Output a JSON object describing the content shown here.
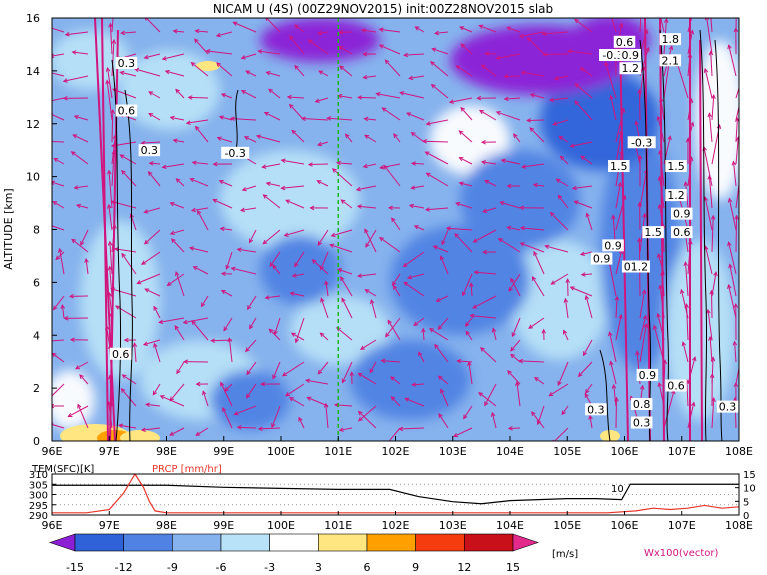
{
  "title": "NICAM U (4S) (00Z29NOV2015) init:00Z28NOV2015 slab",
  "chart_data": [
    {
      "type": "heatmap",
      "name": "zonal-wind-cross-section",
      "ylabel": "ALTITUDE [km]",
      "xlim": [
        96,
        108
      ],
      "ylim": [
        0,
        16
      ],
      "x_ticks": [
        "96E",
        "97E",
        "98E",
        "99E",
        "100E",
        "101E",
        "102E",
        "103E",
        "104E",
        "105E",
        "106E",
        "107E",
        "108E"
      ],
      "y_ticks": [
        "0",
        "2",
        "4",
        "6",
        "8",
        "10",
        "12",
        "14",
        "16"
      ],
      "marker_line_x": 101,
      "contour_labels": [
        {
          "text": "0.3",
          "x": 97.3,
          "y": 14.3
        },
        {
          "text": "0.6",
          "x": 97.3,
          "y": 12.5
        },
        {
          "text": "0.3",
          "x": 97.7,
          "y": 11.0
        },
        {
          "text": "-0.3",
          "x": 99.2,
          "y": 10.9
        },
        {
          "text": "0.6",
          "x": 97.2,
          "y": 3.3
        },
        {
          "text": "0.6",
          "x": 106.0,
          "y": 15.1
        },
        {
          "text": "-0.3",
          "x": 105.8,
          "y": 14.6
        },
        {
          "text": "0.9",
          "x": 106.1,
          "y": 14.6
        },
        {
          "text": "1.2",
          "x": 106.1,
          "y": 14.1
        },
        {
          "text": "1.8",
          "x": 106.8,
          "y": 15.2
        },
        {
          "text": "2.1",
          "x": 106.8,
          "y": 14.4
        },
        {
          "text": "-0.3",
          "x": 106.3,
          "y": 11.3
        },
        {
          "text": "1.5",
          "x": 105.9,
          "y": 10.4
        },
        {
          "text": "1.5",
          "x": 106.9,
          "y": 10.4
        },
        {
          "text": "1.2",
          "x": 106.9,
          "y": 9.3
        },
        {
          "text": "0.9",
          "x": 107.0,
          "y": 8.6
        },
        {
          "text": "1.5",
          "x": 106.5,
          "y": 7.9
        },
        {
          "text": "0.6",
          "x": 107.0,
          "y": 7.9
        },
        {
          "text": "0.9",
          "x": 105.8,
          "y": 7.4
        },
        {
          "text": "0.9",
          "x": 105.6,
          "y": 6.9
        },
        {
          "text": "01.2",
          "x": 106.2,
          "y": 6.6
        },
        {
          "text": "0.9",
          "x": 106.4,
          "y": 2.5
        },
        {
          "text": "0.6",
          "x": 106.9,
          "y": 2.1
        },
        {
          "text": "0.3",
          "x": 105.5,
          "y": 1.2
        },
        {
          "text": "0.8",
          "x": 106.3,
          "y": 1.4
        },
        {
          "text": "0.3",
          "x": 106.3,
          "y": 0.7
        },
        {
          "text": "0.3",
          "x": 107.8,
          "y": 1.3
        }
      ]
    },
    {
      "type": "line",
      "name": "surface-temperature-precipitation",
      "xlim": [
        96,
        108
      ],
      "x_ticks": [
        "96E",
        "97E",
        "98E",
        "99E",
        "100E",
        "101E",
        "102E",
        "103E",
        "104E",
        "105E",
        "106E",
        "107E",
        "108E"
      ],
      "left_axis_label": "TEM(SFC)[K]",
      "left_ticks": [
        "310",
        "305",
        "300",
        "295",
        "290"
      ],
      "left_ylim": [
        290,
        310
      ],
      "right_axis_label": "PRCP [mm/hr]",
      "right_ticks": [
        "15",
        "10",
        "5",
        "0"
      ],
      "right_ylim": [
        0,
        15
      ],
      "right_line_label": "10",
      "series": [
        {
          "name": "TEM(SFC)[K]",
          "color": "#000000",
          "x": [
            96,
            97,
            98,
            99,
            100,
            101,
            101.9,
            102.4,
            103,
            103.5,
            104,
            104.5,
            105,
            105.5,
            105.95,
            106.1,
            108
          ],
          "values": [
            304.5,
            304.5,
            304.5,
            303.5,
            303,
            302.5,
            302.5,
            299,
            296.5,
            295.5,
            297,
            297.5,
            298,
            298,
            297.5,
            305,
            305
          ]
        },
        {
          "name": "PRCP [mm/hr]",
          "color": "#e8352a",
          "x": [
            96,
            96.6,
            97,
            97.25,
            97.45,
            97.6,
            97.7,
            97.8,
            98,
            99,
            100,
            101,
            102,
            103,
            104,
            105,
            105.7,
            106.2,
            106.5,
            106.8,
            107.1,
            107.4,
            107.7,
            108
          ],
          "values": [
            0.8,
            0.8,
            2,
            8,
            15,
            10,
            5,
            1.5,
            0.8,
            0.8,
            0.8,
            0.8,
            0.8,
            0.8,
            0.8,
            0.8,
            0.8,
            1.5,
            2.5,
            2,
            2.5,
            3.5,
            2.5,
            3
          ]
        }
      ]
    }
  ],
  "colorbar": {
    "bounds": [
      "-15",
      "-12",
      "-9",
      "-6",
      "-3",
      "3",
      "6",
      "9",
      "12",
      "15"
    ],
    "unit": "[m/s]",
    "colors": [
      "#8c1fd6",
      "#2f62d9",
      "#4f82e3",
      "#86b2ed",
      "#b8e2f7",
      "#ffffff",
      "#ffe680",
      "#ffa000",
      "#f43c0e",
      "#c8101b",
      "#e2298c"
    ]
  },
  "vector_label": "Wx100(vector)"
}
